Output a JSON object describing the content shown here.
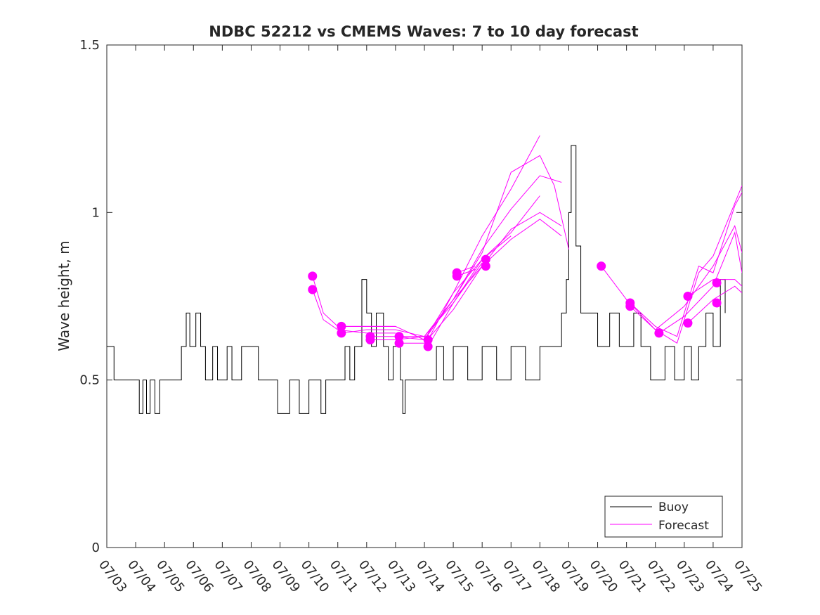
{
  "chart_data": {
    "type": "line",
    "title": "NDBC 52212 vs CMEMS Waves: 7 to 10 day forecast",
    "xlabel": "",
    "ylabel": "Wave height, m",
    "xlim": [
      "07/03",
      "07/25"
    ],
    "ylim": [
      0,
      1.5
    ],
    "x_ticks": [
      "07/03",
      "07/04",
      "07/05",
      "07/06",
      "07/07",
      "07/08",
      "07/09",
      "07/10",
      "07/11",
      "07/12",
      "07/13",
      "07/14",
      "07/15",
      "07/16",
      "07/17",
      "07/18",
      "07/19",
      "07/20",
      "07/21",
      "07/22",
      "07/23",
      "07/24",
      "07/25"
    ],
    "y_ticks": [
      "0",
      "0.5",
      "1",
      "1.5"
    ],
    "grid": false,
    "legend_position": "bottom-right",
    "colors": {
      "buoy": "#000000",
      "forecast": "#ff00ff"
    },
    "series": [
      {
        "name": "Buoy",
        "color": "#000000",
        "points": [
          [
            "07/03 00:00",
            0.6
          ],
          [
            "07/03 03:00",
            0.6
          ],
          [
            "07/03 06:00",
            0.5
          ],
          [
            "07/03 18:00",
            0.5
          ],
          [
            "07/04 03:00",
            0.4
          ],
          [
            "07/04 06:00",
            0.5
          ],
          [
            "07/04 09:00",
            0.4
          ],
          [
            "07/04 12:00",
            0.5
          ],
          [
            "07/04 16:00",
            0.4
          ],
          [
            "07/04 20:00",
            0.5
          ],
          [
            "07/05 12:00",
            0.5
          ],
          [
            "07/05 14:00",
            0.6
          ],
          [
            "07/05 18:00",
            0.7
          ],
          [
            "07/05 21:00",
            0.6
          ],
          [
            "07/06 02:00",
            0.7
          ],
          [
            "07/06 06:00",
            0.6
          ],
          [
            "07/06 10:00",
            0.5
          ],
          [
            "07/06 16:00",
            0.6
          ],
          [
            "07/06 20:00",
            0.5
          ],
          [
            "07/07 04:00",
            0.6
          ],
          [
            "07/07 08:00",
            0.5
          ],
          [
            "07/07 16:00",
            0.6
          ],
          [
            "07/08 00:00",
            0.6
          ],
          [
            "07/08 06:00",
            0.5
          ],
          [
            "07/08 20:00",
            0.5
          ],
          [
            "07/08 22:00",
            0.4
          ],
          [
            "07/09 04:00",
            0.4
          ],
          [
            "07/09 08:00",
            0.5
          ],
          [
            "07/09 16:00",
            0.4
          ],
          [
            "07/10 00:00",
            0.5
          ],
          [
            "07/10 10:00",
            0.4
          ],
          [
            "07/10 14:00",
            0.5
          ],
          [
            "07/11 00:00",
            0.5
          ],
          [
            "07/11 06:00",
            0.6
          ],
          [
            "07/11 10:00",
            0.5
          ],
          [
            "07/11 14:00",
            0.6
          ],
          [
            "07/11 20:00",
            0.8
          ],
          [
            "07/12 00:00",
            0.7
          ],
          [
            "07/12 04:00",
            0.6
          ],
          [
            "07/12 08:00",
            0.7
          ],
          [
            "07/12 14:00",
            0.6
          ],
          [
            "07/12 18:00",
            0.5
          ],
          [
            "07/12 22:00",
            0.6
          ],
          [
            "07/13 04:00",
            0.5
          ],
          [
            "07/13 06:00",
            0.4
          ],
          [
            "07/13 08:00",
            0.5
          ],
          [
            "07/13 20:00",
            0.5
          ],
          [
            "07/14 00:00",
            0.5
          ],
          [
            "07/14 10:00",
            0.6
          ],
          [
            "07/14 16:00",
            0.5
          ],
          [
            "07/15 00:00",
            0.6
          ],
          [
            "07/15 12:00",
            0.5
          ],
          [
            "07/16 00:00",
            0.6
          ],
          [
            "07/16 12:00",
            0.5
          ],
          [
            "07/17 00:00",
            0.6
          ],
          [
            "07/17 12:00",
            0.5
          ],
          [
            "07/18 00:00",
            0.6
          ],
          [
            "07/18 12:00",
            0.6
          ],
          [
            "07/18 18:00",
            0.7
          ],
          [
            "07/18 22:00",
            0.8
          ],
          [
            "07/19 00:00",
            1.0
          ],
          [
            "07/19 02:00",
            1.2
          ],
          [
            "07/19 06:00",
            0.9
          ],
          [
            "07/19 10:00",
            0.7
          ],
          [
            "07/19 16:00",
            0.7
          ],
          [
            "07/20 00:00",
            0.6
          ],
          [
            "07/20 10:00",
            0.7
          ],
          [
            "07/20 18:00",
            0.6
          ],
          [
            "07/21 06:00",
            0.7
          ],
          [
            "07/21 12:00",
            0.6
          ],
          [
            "07/21 20:00",
            0.5
          ],
          [
            "07/22 08:00",
            0.6
          ],
          [
            "07/22 16:00",
            0.5
          ],
          [
            "07/23 00:00",
            0.6
          ],
          [
            "07/23 06:00",
            0.5
          ],
          [
            "07/23 12:00",
            0.6
          ],
          [
            "07/23 18:00",
            0.7
          ],
          [
            "07/24 00:00",
            0.6
          ],
          [
            "07/24 06:00",
            0.8
          ],
          [
            "07/24 10:00",
            0.7
          ]
        ]
      },
      {
        "name": "Forecast",
        "color": "#ff00ff",
        "runs": [
          {
            "start": [
              "07/10 03:00",
              0.81
            ],
            "points": [
              [
                "07/10 03:00",
                0.81
              ],
              [
                "07/10 12:00",
                0.7
              ],
              [
                "07/11 00:00",
                0.66
              ],
              [
                "07/12 00:00",
                0.66
              ],
              [
                "07/13 00:00",
                0.66
              ]
            ]
          },
          {
            "start": [
              "07/10 03:00",
              0.77
            ],
            "points": [
              [
                "07/10 03:00",
                0.77
              ],
              [
                "07/10 12:00",
                0.68
              ],
              [
                "07/11 00:00",
                0.65
              ],
              [
                "07/12 00:00",
                0.64
              ],
              [
                "07/13 00:00",
                0.64
              ]
            ]
          },
          {
            "start": [
              "07/11 03:00",
              0.66
            ],
            "points": [
              [
                "07/11 03:00",
                0.66
              ],
              [
                "07/12 00:00",
                0.66
              ],
              [
                "07/13 00:00",
                0.66
              ],
              [
                "07/14 00:00",
                0.62
              ],
              [
                "07/15 00:00",
                0.76
              ],
              [
                "07/16 00:00",
                0.93
              ],
              [
                "07/17 00:00",
                1.07
              ],
              [
                "07/18 00:00",
                1.23
              ]
            ]
          },
          {
            "start": [
              "07/11 03:00",
              0.64
            ],
            "points": [
              [
                "07/11 03:00",
                0.64
              ],
              [
                "07/12 00:00",
                0.65
              ],
              [
                "07/13 00:00",
                0.65
              ],
              [
                "07/14 00:00",
                0.63
              ],
              [
                "07/15 00:00",
                0.74
              ],
              [
                "07/16 00:00",
                0.88
              ],
              [
                "07/17 00:00",
                1.12
              ],
              [
                "07/18 00:00",
                1.17
              ],
              [
                "07/18 12:00",
                1.08
              ],
              [
                "07/19 00:00",
                0.89
              ]
            ]
          },
          {
            "start": [
              "07/12 03:00",
              0.63
            ],
            "points": [
              [
                "07/12 03:00",
                0.63
              ],
              [
                "07/13 00:00",
                0.63
              ],
              [
                "07/14 00:00",
                0.62
              ],
              [
                "07/15 00:00",
                0.74
              ],
              [
                "07/16 00:00",
                0.89
              ],
              [
                "07/17 00:00",
                1.01
              ],
              [
                "07/18 00:00",
                1.11
              ],
              [
                "07/18 18:00",
                1.09
              ]
            ]
          },
          {
            "start": [
              "07/12 03:00",
              0.62
            ],
            "points": [
              [
                "07/12 03:00",
                0.62
              ],
              [
                "07/13 00:00",
                0.62
              ],
              [
                "07/14 00:00",
                0.63
              ],
              [
                "07/15 00:00",
                0.73
              ],
              [
                "07/16 00:00",
                0.86
              ],
              [
                "07/17 00:00",
                0.94
              ],
              [
                "07/18 00:00",
                1.05
              ]
            ]
          },
          {
            "start": [
              "07/13 03:00",
              0.63
            ],
            "points": [
              [
                "07/13 03:00",
                0.63
              ],
              [
                "07/14 00:00",
                0.63
              ],
              [
                "07/15 00:00",
                0.74
              ],
              [
                "07/16 00:00",
                0.84
              ],
              [
                "07/17 00:00",
                0.95
              ],
              [
                "07/18 00:00",
                1.0
              ],
              [
                "07/18 18:00",
                0.96
              ]
            ]
          },
          {
            "start": [
              "07/13 03:00",
              0.61
            ],
            "points": [
              [
                "07/13 03:00",
                0.61
              ],
              [
                "07/14 00:00",
                0.61
              ],
              [
                "07/15 00:00",
                0.71
              ],
              [
                "07/16 00:00",
                0.84
              ],
              [
                "07/17 00:00",
                0.92
              ],
              [
                "07/18 00:00",
                0.98
              ],
              [
                "07/18 18:00",
                0.93
              ]
            ]
          },
          {
            "start": [
              "07/14 03:00",
              0.62
            ],
            "points": [
              [
                "07/14 03:00",
                0.62
              ],
              [
                "07/15 00:00",
                0.76
              ],
              [
                "07/16 00:00",
                0.86
              ],
              [
                "07/17 00:00",
                0.93
              ]
            ]
          },
          {
            "start": [
              "07/14 03:00",
              0.6
            ],
            "points": [
              [
                "07/14 03:00",
                0.6
              ],
              [
                "07/15 00:00",
                0.73
              ],
              [
                "07/16 00:00",
                0.85
              ]
            ]
          },
          {
            "start": [
              "07/15 03:00",
              0.82
            ],
            "points": [
              [
                "07/15 03:00",
                0.82
              ],
              [
                "07/15 18:00",
                0.84
              ]
            ]
          },
          {
            "start": [
              "07/15 03:00",
              0.81
            ],
            "points": [
              [
                "07/15 03:00",
                0.81
              ],
              [
                "07/15 18:00",
                0.83
              ]
            ]
          },
          {
            "start": [
              "07/16 03:00",
              0.86
            ],
            "points": [
              [
                "07/16 03:00",
                0.86
              ]
            ]
          },
          {
            "start": [
              "07/16 03:00",
              0.84
            ],
            "points": [
              [
                "07/16 03:00",
                0.84
              ]
            ]
          },
          {
            "start": [
              "07/20 03:00",
              0.84
            ],
            "points": [
              [
                "07/20 03:00",
                0.84
              ],
              [
                "07/21 00:00",
                0.74
              ],
              [
                "07/22 00:00",
                0.65
              ],
              [
                "07/22 18:00",
                0.61
              ],
              [
                "07/23 12:00",
                0.82
              ],
              [
                "07/24 00:00",
                0.87
              ],
              [
                "07/25 00:00",
                1.08
              ]
            ]
          },
          {
            "start": [
              "07/21 03:00",
              0.73
            ],
            "points": [
              [
                "07/21 03:00",
                0.73
              ],
              [
                "07/22 00:00",
                0.66
              ],
              [
                "07/22 18:00",
                0.63
              ],
              [
                "07/23 12:00",
                0.84
              ],
              [
                "07/24 00:00",
                0.82
              ],
              [
                "07/24 18:00",
                1.02
              ],
              [
                "07/25 00:00",
                1.06
              ]
            ]
          },
          {
            "start": [
              "07/21 03:00",
              0.72
            ],
            "points": [
              [
                "07/21 03:00",
                0.72
              ],
              [
                "07/22 00:00",
                0.65
              ],
              [
                "07/23 00:00",
                0.72
              ],
              [
                "07/24 00:00",
                0.84
              ],
              [
                "07/24 18:00",
                0.96
              ],
              [
                "07/25 00:00",
                0.88
              ]
            ]
          },
          {
            "start": [
              "07/22 03:00",
              0.64
            ],
            "points": [
              [
                "07/22 03:00",
                0.64
              ],
              [
                "07/23 00:00",
                0.69
              ],
              [
                "07/24 00:00",
                0.78
              ],
              [
                "07/24 18:00",
                0.94
              ],
              [
                "07/25 00:00",
                0.82
              ]
            ]
          },
          {
            "start": [
              "07/23 03:00",
              0.75
            ],
            "points": [
              [
                "07/23 03:00",
                0.75
              ],
              [
                "07/24 00:00",
                0.8
              ],
              [
                "07/24 18:00",
                0.8
              ],
              [
                "07/25 00:00",
                0.78
              ]
            ]
          },
          {
            "start": [
              "07/23 03:00",
              0.67
            ],
            "points": [
              [
                "07/23 03:00",
                0.67
              ],
              [
                "07/24 00:00",
                0.74
              ],
              [
                "07/24 18:00",
                0.78
              ],
              [
                "07/25 00:00",
                0.76
              ]
            ]
          },
          {
            "start": [
              "07/24 03:00",
              0.79
            ],
            "points": [
              [
                "07/24 03:00",
                0.79
              ]
            ]
          },
          {
            "start": [
              "07/24 03:00",
              0.73
            ],
            "points": [
              [
                "07/24 03:00",
                0.73
              ]
            ]
          }
        ]
      }
    ],
    "legend": [
      "Buoy",
      "Forecast"
    ]
  }
}
